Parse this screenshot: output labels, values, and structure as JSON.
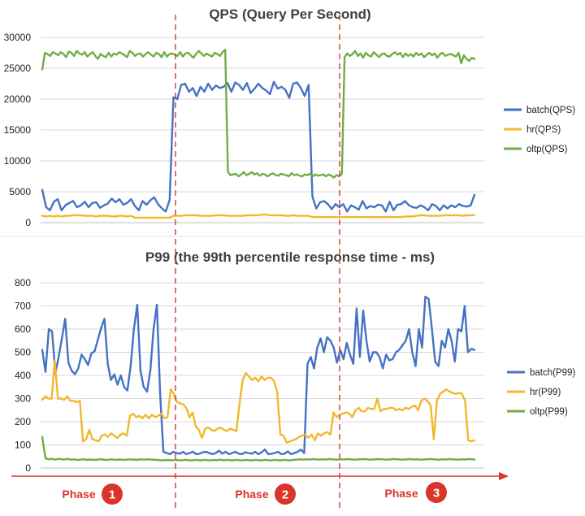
{
  "chart_data": [
    {
      "type": "line",
      "title": "QPS (Query Per Second)",
      "xlabel": "",
      "ylabel": "",
      "ylim": [
        0,
        30000
      ],
      "yticks": [
        0,
        5000,
        10000,
        15000,
        20000,
        25000,
        30000
      ],
      "grid": true,
      "legend_position": "right",
      "series": [
        {
          "name": "batch(QPS)",
          "color": "#4472c4",
          "values": [
            5300,
            2500,
            2000,
            3400,
            3800,
            2000,
            2800,
            3200,
            3500,
            2500,
            2800,
            3400,
            2500,
            3200,
            3300,
            2400,
            2800,
            3100,
            3900,
            3300,
            3800,
            2900,
            3200,
            3800,
            2700,
            2000,
            3500,
            2900,
            3600,
            4100,
            3000,
            2300,
            1800,
            3700,
            20300,
            20000,
            22300,
            22500,
            21200,
            21800,
            20500,
            22000,
            21200,
            22500,
            21500,
            22200,
            21800,
            22000,
            22600,
            21200,
            22700,
            22300,
            21500,
            22600,
            21000,
            21700,
            22500,
            21800,
            21400,
            20800,
            22800,
            21700,
            22000,
            21500,
            20200,
            22500,
            22700,
            21800,
            20500,
            22300,
            4200,
            2300,
            3300,
            3500,
            3000,
            2200,
            3000,
            2500,
            3000,
            1800,
            2800,
            2500,
            2100,
            3500,
            2300,
            2700,
            2500,
            2900,
            2800,
            1800,
            3400,
            2000,
            2900,
            3000,
            3500,
            2800,
            2500,
            2400,
            2800,
            2500,
            2000,
            3000,
            2700,
            2000,
            2800,
            2300,
            2800,
            2500,
            3000,
            2700,
            2600,
            2800,
            4500
          ]
        },
        {
          "name": "hr(QPS)",
          "color": "#f0b82d",
          "values": [
            1100,
            1000,
            1100,
            1000,
            1100,
            1000,
            1100,
            1100,
            1200,
            1200,
            1200,
            1100,
            1100,
            1100,
            1000,
            1100,
            1100,
            1100,
            1000,
            1000,
            1100,
            1100,
            1000,
            1100,
            800,
            800,
            800,
            800,
            800,
            800,
            800,
            800,
            800,
            800,
            1100,
            1100,
            1100,
            1200,
            1200,
            1200,
            1200,
            1100,
            1100,
            1100,
            1100,
            1200,
            1200,
            1200,
            1100,
            1100,
            1100,
            1100,
            1100,
            1200,
            1200,
            1200,
            1200,
            1300,
            1300,
            1200,
            1200,
            1200,
            1200,
            1100,
            1100,
            1200,
            1100,
            1100,
            1100,
            1100,
            900,
            900,
            900,
            900,
            900,
            900,
            900,
            900,
            900,
            900,
            900,
            900,
            900,
            900,
            900,
            900,
            900,
            900,
            900,
            900,
            900,
            900,
            900,
            900,
            1000,
            1000,
            1000,
            1100,
            1200,
            1200,
            1100,
            1100,
            1100,
            1100,
            1200,
            1200,
            1200,
            1200,
            1200,
            1100,
            1200,
            1200,
            1200
          ]
        },
        {
          "name": "oltp(QPS)",
          "color": "#70ad47",
          "values": [
            24800,
            27500,
            27300,
            27000,
            27600,
            27400,
            27100,
            27600,
            27300,
            26800,
            27700,
            27500,
            27000,
            27800,
            27400,
            27200,
            27600,
            26900,
            27300,
            27600,
            27000,
            26500,
            27300,
            27000,
            26800,
            27500,
            26900,
            27400,
            27200,
            27600,
            27400,
            27100,
            26800,
            27800,
            27500,
            27000,
            27300,
            27400,
            26900,
            27300,
            27600,
            27200,
            26900,
            27500,
            27300,
            26800,
            27600,
            26900,
            27300,
            27400,
            27200,
            27000,
            27600,
            26900,
            27400,
            27500,
            27100,
            26700,
            27300,
            27800,
            27400,
            27000,
            27400,
            27100,
            26900,
            27500,
            27300,
            27000,
            27600,
            28000,
            8200,
            7700,
            7800,
            7900,
            7500,
            7800,
            8200,
            7700,
            7900,
            8200,
            7800,
            8000,
            7600,
            7900,
            7800,
            7500,
            7800,
            8000,
            7700,
            7600,
            7900,
            7800,
            7700,
            7500,
            8000,
            7700,
            7800,
            7600,
            7500,
            7800,
            7700,
            7900,
            7500,
            7800,
            7600,
            7700,
            7800,
            7500,
            7800,
            7600,
            7300,
            7700,
            7500,
            7900
          ]
        },
        {
          "name": "oltp(QPS)",
          "color": "#70ad47",
          "values": [
            26800,
            27400,
            27000,
            27300,
            27800,
            27000,
            27400,
            26700,
            27500,
            27100,
            26900,
            27600,
            27200,
            26800,
            27300,
            27400,
            27000,
            26900,
            27300,
            27600,
            27200,
            27500,
            26800,
            27400,
            27000,
            27300,
            26900,
            27500,
            27100,
            27400,
            26800,
            27200,
            27500,
            27100,
            27400,
            26700,
            27300,
            27500,
            27000,
            27200,
            27300,
            27100,
            26900,
            27500,
            25800,
            27100,
            26500,
            26200,
            26700,
            26500
          ]
        }
      ],
      "segments_note": "Phase-aligned series: values arrays are rendered across the three phase regions."
    },
    {
      "type": "line",
      "title": "P99 (the 99th percentile response time - ms)",
      "xlabel": "",
      "ylabel": "",
      "ylim": [
        0,
        800
      ],
      "yticks": [
        0,
        100,
        200,
        300,
        400,
        500,
        600,
        700,
        800
      ],
      "grid": true,
      "legend_position": "right",
      "series": [
        {
          "name": "batch(P99)",
          "color": "#4472c4"
        },
        {
          "name": "hr(P99)",
          "color": "#f0b82d"
        },
        {
          "name": "oltp(P99)",
          "color": "#70ad47"
        }
      ]
    }
  ],
  "phases": [
    {
      "label": "Phase",
      "number": "1"
    },
    {
      "label": "Phase",
      "number": "2"
    },
    {
      "label": "Phase",
      "number": "3"
    }
  ],
  "colors": {
    "batch": "#4472c4",
    "hr": "#f0b82d",
    "oltp": "#70ad47",
    "phase": "#d9352a",
    "grid": "#d9d9d9"
  }
}
